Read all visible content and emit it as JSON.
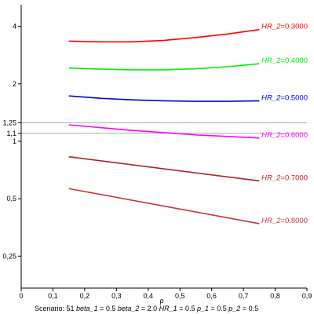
{
  "chart_data": {
    "type": "line",
    "xlabel": "ρ",
    "ylabel": "",
    "xlim": [
      0,
      0.9
    ],
    "ylim": [
      0.17,
      5.2
    ],
    "yscale": "log",
    "x_ticks": [
      "0",
      "0,1",
      "0,2",
      "0,3",
      "0,4",
      "0,5",
      "0,6",
      "0,7",
      "0,8",
      "0,9"
    ],
    "x_tick_values": [
      0,
      0.1,
      0.2,
      0.3,
      0.4,
      0.5,
      0.6,
      0.7,
      0.8,
      0.9
    ],
    "y_ticks": [
      "0,25",
      "0,5",
      "1",
      "1,1",
      "1,25",
      "2",
      "4"
    ],
    "y_tick_values": [
      0.25,
      0.5,
      1,
      1.1,
      1.25,
      2,
      4
    ],
    "reference_lines": [
      1.1,
      1.25
    ],
    "series": [
      {
        "name": "HR_2=0.3000",
        "var": "HR_2",
        "value": "0.3000",
        "color": "#ff0000",
        "x": [
          0.15,
          0.25,
          0.35,
          0.45,
          0.55,
          0.65,
          0.75
        ],
        "y": [
          3.35,
          3.32,
          3.32,
          3.38,
          3.5,
          3.65,
          3.85
        ]
      },
      {
        "name": "HR_2=0.4000",
        "var": "HR_2",
        "value": "0.4000",
        "color": "#00ee00",
        "x": [
          0.15,
          0.25,
          0.35,
          0.45,
          0.55,
          0.65,
          0.75
        ],
        "y": [
          2.42,
          2.39,
          2.37,
          2.37,
          2.4,
          2.46,
          2.55
        ]
      },
      {
        "name": "HR_2=0.5000",
        "var": "HR_2",
        "value": "0.5000",
        "color": "#0000dd",
        "x": [
          0.15,
          0.25,
          0.35,
          0.45,
          0.55,
          0.65,
          0.75
        ],
        "y": [
          1.73,
          1.68,
          1.65,
          1.63,
          1.62,
          1.62,
          1.63
        ]
      },
      {
        "name": "HR_2=0.6000",
        "var": "HR_2",
        "value": "0.6000",
        "color": "#ff00ff",
        "x": [
          0.15,
          0.25,
          0.35,
          0.45,
          0.55,
          0.65,
          0.75
        ],
        "y": [
          1.22,
          1.18,
          1.14,
          1.11,
          1.08,
          1.06,
          1.04
        ]
      },
      {
        "name": "HR_2=0.7000",
        "var": "HR_2",
        "value": "0.7000",
        "color": "#b22222",
        "x": [
          0.15,
          0.75
        ],
        "y": [
          0.83,
          0.62
        ]
      },
      {
        "name": "HR_2=0.8000",
        "var": "HR_2",
        "value": "0.8000",
        "color": "#cd3333",
        "x": [
          0.15,
          0.75
        ],
        "y": [
          0.565,
          0.37
        ]
      }
    ]
  },
  "footer": {
    "scenario": "Scenario: 51",
    "params": [
      {
        "name": "beta_1",
        "value": "0.5"
      },
      {
        "name": "beta_2",
        "value": "2.0"
      },
      {
        "name": "HR_1",
        "value": "0.5"
      },
      {
        "name": "p_1",
        "value": "0.5"
      },
      {
        "name": "p_2",
        "value": "0.5"
      }
    ]
  }
}
